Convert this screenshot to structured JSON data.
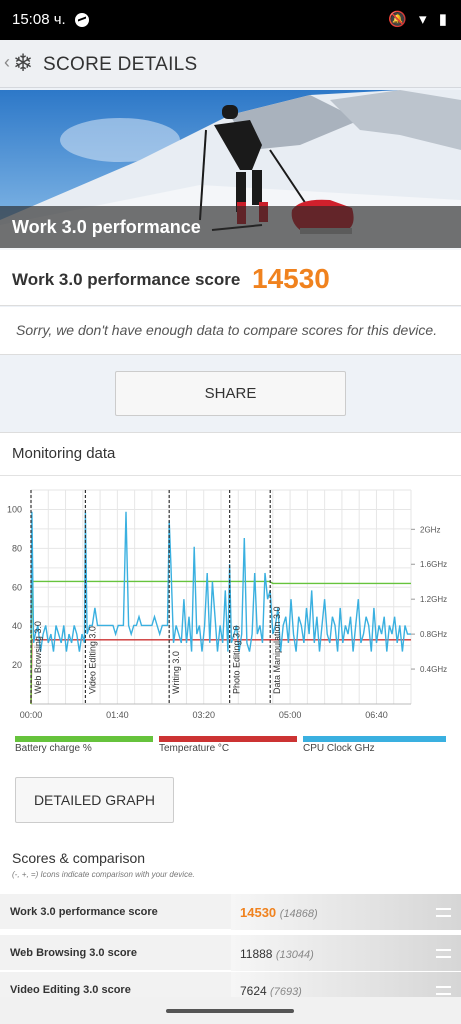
{
  "status_bar": {
    "time": "15:08 ч.",
    "icons": "🔕 ▾ ▮"
  },
  "app_bar": {
    "title": "SCORE DETAILS"
  },
  "hero": {
    "label": "Work 3.0 performance"
  },
  "score": {
    "label": "Work 3.0 performance score",
    "value": "14530"
  },
  "message": "Sorry, we don't have enough data to compare scores for this device.",
  "share_label": "SHARE",
  "monitoring": {
    "title": "Monitoring data"
  },
  "chart_data": {
    "type": "line",
    "x_ticks": [
      "00:00",
      "01:40",
      "03:20",
      "05:00",
      "06:40"
    ],
    "y_left_ticks": [
      20,
      40,
      60,
      80,
      100
    ],
    "y_right_ticks": [
      "0.4GHz",
      "0.8GHz",
      "1.2GHz",
      "1.6GHz",
      "2GHz"
    ],
    "x_range_seconds": [
      0,
      440
    ],
    "y_left_range": [
      0,
      110
    ],
    "y_right_range_ghz": [
      0,
      2.45
    ],
    "phases": [
      {
        "label": "Web Browsing 3.0",
        "start_s": 0
      },
      {
        "label": "Video Editing 3.0",
        "start_s": 63
      },
      {
        "label": "Writing 3.0",
        "start_s": 160
      },
      {
        "label": "Photo Editing 3.0",
        "start_s": 230
      },
      {
        "label": "Data Manipulation 3.0",
        "start_s": 277
      }
    ],
    "series": [
      {
        "name": "Battery charge %",
        "color": "#66c33c",
        "x": [
          0,
          1,
          276,
          280,
          440
        ],
        "y": [
          0,
          63,
          63,
          62,
          62
        ]
      },
      {
        "name": "Temperature °C",
        "color": "#cc3333",
        "x": [
          0,
          1,
          440
        ],
        "y": [
          0,
          33,
          33
        ]
      },
      {
        "name": "CPU Clock GHz",
        "color": "#3ab0e0",
        "x": [
          0,
          1,
          3,
          5,
          8,
          11,
          14,
          17,
          20,
          23,
          26,
          29,
          32,
          35,
          38,
          41,
          44,
          47,
          50,
          53,
          56,
          59,
          62,
          63,
          65,
          68,
          71,
          74,
          77,
          80,
          83,
          86,
          89,
          92,
          95,
          98,
          101,
          104,
          107,
          110,
          113,
          116,
          119,
          122,
          125,
          128,
          131,
          134,
          137,
          140,
          143,
          146,
          149,
          152,
          155,
          158,
          160,
          162,
          165,
          168,
          171,
          174,
          177,
          180,
          183,
          186,
          189,
          192,
          195,
          198,
          201,
          204,
          207,
          210,
          213,
          216,
          219,
          222,
          225,
          228,
          230,
          232,
          235,
          238,
          241,
          244,
          247,
          250,
          253,
          256,
          259,
          262,
          265,
          268,
          271,
          274,
          277,
          280,
          283,
          286,
          289,
          292,
          295,
          298,
          301,
          304,
          307,
          310,
          313,
          316,
          319,
          322,
          325,
          328,
          331,
          334,
          337,
          340,
          343,
          346,
          349,
          352,
          355,
          358,
          361,
          364,
          367,
          370,
          373,
          376,
          379,
          382,
          385,
          388,
          391,
          394,
          397,
          400,
          403,
          406,
          409,
          412,
          415,
          418,
          421,
          424,
          427,
          430,
          433,
          436,
          440
        ],
        "y": [
          0.8,
          2.2,
          0.7,
          0.8,
          0.9,
          0.6,
          0.8,
          0.9,
          0.7,
          0.8,
          0.6,
          0.9,
          0.8,
          0.7,
          0.9,
          0.6,
          0.8,
          0.7,
          0.9,
          0.8,
          0.6,
          0.8,
          0.7,
          2.2,
          0.8,
          0.9,
          0.9,
          1.1,
          0.9,
          0.9,
          0.9,
          0.9,
          0.9,
          0.9,
          0.9,
          0.8,
          0.9,
          0.9,
          0.9,
          2.2,
          0.9,
          0.8,
          0.9,
          0.9,
          1.0,
          0.9,
          0.9,
          0.9,
          0.9,
          0.9,
          1.0,
          0.9,
          0.8,
          0.9,
          0.9,
          0.9,
          2.1,
          1.6,
          0.7,
          0.9,
          0.8,
          0.7,
          1.2,
          0.7,
          1.0,
          0.6,
          1.8,
          0.8,
          0.9,
          0.6,
          0.9,
          1.5,
          0.7,
          1.4,
          1.0,
          0.6,
          0.9,
          0.7,
          1.3,
          0.6,
          1.6,
          0.7,
          0.8,
          0.9,
          0.6,
          0.8,
          1.9,
          0.7,
          0.6,
          0.8,
          1.5,
          0.8,
          0.9,
          0.7,
          1.5,
          1.2,
          1.3,
          0.8,
          0.9,
          1.1,
          0.6,
          0.9,
          1.0,
          0.7,
          1.2,
          0.8,
          0.6,
          1.0,
          0.9,
          0.7,
          1.1,
          0.8,
          1.3,
          0.7,
          1.0,
          0.6,
          0.9,
          1.2,
          0.8,
          0.7,
          1.0,
          0.9,
          0.6,
          1.1,
          0.7,
          0.9,
          0.8,
          1.0,
          0.6,
          0.9,
          1.2,
          0.7,
          0.8,
          1.0,
          0.9,
          0.6,
          1.1,
          0.7,
          0.9,
          0.8,
          1.0,
          0.6,
          0.9,
          0.8,
          1.0,
          0.7,
          0.9,
          0.6,
          0.9,
          0.8,
          0.8
        ]
      }
    ],
    "grid": true,
    "legend_position": "bottom"
  },
  "detailed_graph_label": "DETAILED GRAPH",
  "scores": {
    "title": "Scores & comparison",
    "note": "(-, +, =) Icons indicate comparison with your device.",
    "rows": [
      {
        "label": "Work 3.0 performance score",
        "value": "14530",
        "compare": "(14868)"
      },
      {
        "label": "Web Browsing 3.0 score",
        "value": "11888",
        "compare": "(13044)"
      },
      {
        "label": "Video Editing 3.0 score",
        "value": "7624",
        "compare": "(7693)"
      }
    ]
  },
  "colors": {
    "accent": "#f0821e",
    "battery": "#66c33c",
    "temperature": "#cc3333",
    "cpu": "#3ab0e0"
  }
}
